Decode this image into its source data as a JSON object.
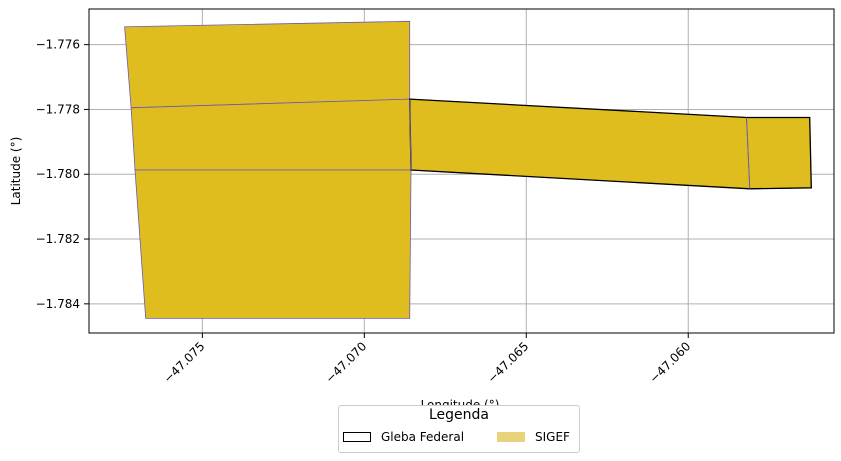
{
  "chart_data": {
    "type": "map",
    "xlabel": "Longitude (°)",
    "ylabel": "Latitude (°)",
    "xlim": [
      -47.0785,
      -47.0555
    ],
    "ylim": [
      -1.7849,
      -1.7749
    ],
    "xticks": [
      -47.075,
      -47.07,
      -47.065,
      -47.06
    ],
    "xtick_labels": [
      "−47.075",
      "−47.070",
      "−47.065",
      "−47.060"
    ],
    "yticks": [
      -1.776,
      -1.778,
      -1.78,
      -1.782,
      -1.784
    ],
    "ytick_labels": [
      "−1.776",
      "−1.778",
      "−1.780",
      "−1.782",
      "−1.784"
    ],
    "grid": true,
    "colors": {
      "fill": "#e0bd1f",
      "sigef_edge": "#6a5ab8",
      "gleba_edge": "#000000",
      "legend_sigef": "#e8d27a"
    },
    "sigef_polygons": [
      [
        [
          -47.0774,
          -1.77545
        ],
        [
          -47.0686,
          -1.77528
        ],
        [
          -47.0686,
          -1.77768
        ],
        [
          -47.0772,
          -1.77795
        ]
      ],
      [
        [
          -47.0772,
          -1.77795
        ],
        [
          -47.0686,
          -1.77768
        ],
        [
          -47.06856,
          -1.77987
        ],
        [
          -47.07708,
          -1.77987
        ]
      ],
      [
        [
          -47.07708,
          -1.77987
        ],
        [
          -47.06856,
          -1.77987
        ],
        [
          -47.0686,
          -1.78445
        ],
        [
          -47.07675,
          -1.78445
        ]
      ],
      [
        [
          -47.0686,
          -1.77768
        ],
        [
          -47.0582,
          -1.77825
        ],
        [
          -47.0581,
          -1.78045
        ],
        [
          -47.06856,
          -1.77987
        ]
      ],
      [
        [
          -47.0582,
          -1.77825
        ],
        [
          -47.05625,
          -1.77825
        ],
        [
          -47.0562,
          -1.78042
        ],
        [
          -47.0581,
          -1.78045
        ]
      ]
    ],
    "gleba_polygon": [
      [
        -47.0686,
        -1.77768
      ],
      [
        -47.0582,
        -1.77825
      ],
      [
        -47.05625,
        -1.77825
      ],
      [
        -47.0562,
        -1.78042
      ],
      [
        -47.0581,
        -1.78045
      ],
      [
        -47.06856,
        -1.77987
      ]
    ],
    "gleba_inner_edges": [
      [
        [
          -47.0686,
          -1.77768
        ],
        [
          -47.06856,
          -1.77987
        ]
      ],
      [
        [
          -47.0582,
          -1.77825
        ],
        [
          -47.0581,
          -1.78045
        ]
      ]
    ]
  },
  "legend": {
    "title": "Legenda",
    "items": [
      {
        "label": "Gleba Federal"
      },
      {
        "label": "SIGEF"
      }
    ]
  }
}
